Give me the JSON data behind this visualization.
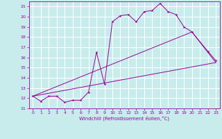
{
  "xlabel": "Windchill (Refroidissement éolien,°C)",
  "bg_color": "#c8ecec",
  "grid_color": "#ffffff",
  "line_color": "#990099",
  "xlim": [
    -0.5,
    23.5
  ],
  "ylim": [
    11,
    21.5
  ],
  "yticks": [
    11,
    12,
    13,
    14,
    15,
    16,
    17,
    18,
    19,
    20,
    21
  ],
  "xticks": [
    0,
    1,
    2,
    3,
    4,
    5,
    6,
    7,
    8,
    9,
    10,
    11,
    12,
    13,
    14,
    15,
    16,
    17,
    18,
    19,
    20,
    21,
    22,
    23
  ],
  "series": [
    {
      "x": [
        0,
        1,
        2,
        3,
        4,
        5,
        6,
        7,
        8,
        9,
        10,
        11,
        12,
        13,
        14,
        15,
        16,
        17,
        18,
        19,
        20,
        22,
        23
      ],
      "y": [
        12.2,
        11.7,
        12.2,
        12.2,
        11.6,
        11.8,
        11.8,
        12.6,
        16.5,
        13.4,
        19.5,
        20.1,
        20.2,
        19.5,
        20.5,
        20.6,
        21.3,
        20.5,
        20.2,
        19.0,
        18.5,
        16.6,
        15.7
      ]
    },
    {
      "x": [
        0,
        23
      ],
      "y": [
        12.2,
        15.5
      ]
    },
    {
      "x": [
        0,
        20,
        23
      ],
      "y": [
        12.2,
        18.5,
        15.5
      ]
    }
  ]
}
